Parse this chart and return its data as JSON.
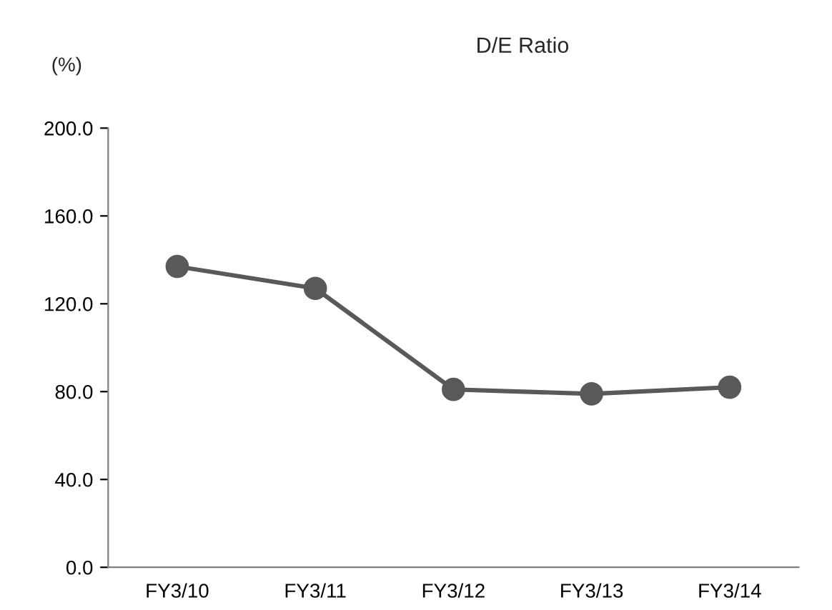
{
  "chart_data": {
    "type": "line",
    "title": "D/E Ratio",
    "ylabel": "(%)",
    "categories": [
      "FY3/10",
      "FY3/11",
      "FY3/12",
      "FY3/13",
      "FY3/14"
    ],
    "series": [
      {
        "color": "#595959",
        "values": [
          137,
          127,
          81,
          79,
          82
        ]
      }
    ],
    "ylim": [
      0,
      200
    ],
    "yticks": [
      {
        "value": 0,
        "label": "0.0"
      },
      {
        "value": 40,
        "label": "40.0"
      },
      {
        "value": 80,
        "label": "80.0"
      },
      {
        "value": 120,
        "label": "120.0"
      },
      {
        "value": 160,
        "label": "160.0"
      },
      {
        "value": 200,
        "label": "200.0"
      }
    ],
    "marker": "circle",
    "line_style": "solid",
    "grid": false
  }
}
